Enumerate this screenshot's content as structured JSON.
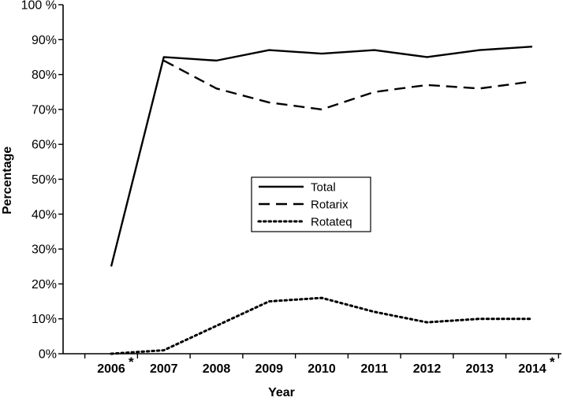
{
  "chart_data": {
    "type": "line",
    "xlabel": "Year",
    "ylabel": "Percentage",
    "categories": [
      "2006",
      "2007",
      "2008",
      "2009",
      "2010",
      "2011",
      "2012",
      "2013",
      "2014"
    ],
    "category_markers": [
      "*",
      "",
      "",
      "",
      "",
      "",
      "",
      "",
      "*"
    ],
    "y_ticks": [
      "0%",
      "10%",
      "20%",
      "30%",
      "40%",
      "50%",
      "60%",
      "70%",
      "80%",
      "90%",
      "100 %"
    ],
    "ylim": [
      0,
      100
    ],
    "grid": false,
    "legend_position": "center",
    "series": [
      {
        "name": "Total",
        "style": "solid",
        "values": [
          25,
          85,
          84,
          87,
          86,
          87,
          85,
          87,
          88
        ]
      },
      {
        "name": "Rotarix",
        "style": "dashed",
        "values": [
          null,
          84,
          76,
          72,
          70,
          75,
          77,
          76,
          78
        ]
      },
      {
        "name": "Rotateq",
        "style": "dotted",
        "values": [
          0,
          1,
          8,
          15,
          16,
          12,
          9,
          10,
          10
        ]
      }
    ],
    "line_color": "#000000"
  }
}
